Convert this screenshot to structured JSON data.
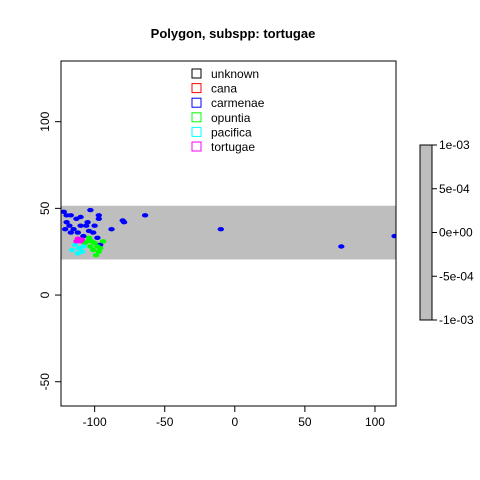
{
  "chart_data": {
    "type": "scatter",
    "title": "Polygon, subspp: tortugae",
    "xlabel": "",
    "ylabel": "",
    "xlim": [
      -124,
      115
    ],
    "ylim": [
      -64,
      135
    ],
    "x_ticks": [
      -100,
      -50,
      0,
      50,
      100
    ],
    "y_ticks": [
      -50,
      0,
      50,
      100
    ],
    "x_tick_labels": [
      "-100",
      "-50",
      "0",
      "50",
      "100"
    ],
    "y_tick_labels": [
      "-50",
      "0",
      "50",
      "100"
    ],
    "band": {
      "ymin": 20.5,
      "ymax": 51.5,
      "color": "#bebebe"
    },
    "legend_position": "top-center",
    "series": [
      {
        "name": "unknown",
        "color": "#000000",
        "points": []
      },
      {
        "name": "cana",
        "color": "#ff0000",
        "points": []
      },
      {
        "name": "carmenae",
        "color": "#0000ff",
        "points": [
          [
            -122,
            48
          ],
          [
            -120,
            46
          ],
          [
            -117,
            46
          ],
          [
            -113,
            44
          ],
          [
            -110,
            45
          ],
          [
            -105,
            42
          ],
          [
            -103,
            49
          ],
          [
            -97,
            46
          ],
          [
            -97,
            44
          ],
          [
            -88,
            38
          ],
          [
            -80,
            43
          ],
          [
            -79,
            42
          ],
          [
            -64,
            46
          ],
          [
            -10,
            38
          ],
          [
            76,
            28
          ],
          [
            114,
            34
          ],
          [
            -120,
            42
          ],
          [
            -118,
            40
          ],
          [
            -115,
            38
          ],
          [
            -112,
            36
          ],
          [
            -108,
            34
          ],
          [
            -104,
            37
          ],
          [
            -101,
            36
          ],
          [
            -98,
            33
          ],
          [
            -96,
            29
          ],
          [
            -110,
            40
          ],
          [
            -106,
            40
          ],
          [
            -117,
            36
          ],
          [
            -121,
            38
          ],
          [
            -100,
            40
          ]
        ]
      },
      {
        "name": "opuntia",
        "color": "#00ff00",
        "points": [
          [
            -104,
            33
          ],
          [
            -102,
            31
          ],
          [
            -100,
            30
          ],
          [
            -98,
            28
          ],
          [
            -101,
            26
          ],
          [
            -97,
            25
          ],
          [
            -99,
            23
          ],
          [
            -96,
            27
          ],
          [
            -103,
            28
          ],
          [
            -105,
            31
          ],
          [
            -107,
            30
          ],
          [
            -94,
            31
          ]
        ]
      },
      {
        "name": "pacifica",
        "color": "#00ffff",
        "points": [
          [
            -114,
            29
          ],
          [
            -111,
            27
          ],
          [
            -109,
            25
          ],
          [
            -112,
            24
          ],
          [
            -116,
            26
          ],
          [
            -108,
            28
          ]
        ]
      },
      {
        "name": "tortugae",
        "color": "#ff00ff",
        "points": [
          [
            -113,
            31
          ],
          [
            -110,
            31
          ],
          [
            -112,
            32.5
          ],
          [
            -109,
            32
          ]
        ]
      }
    ],
    "colorbar": {
      "tick_labels": [
        "1e-03",
        "5e-04",
        "0e+00",
        "-5e-04",
        "-1e-03"
      ],
      "fill": "#bebebe"
    }
  }
}
